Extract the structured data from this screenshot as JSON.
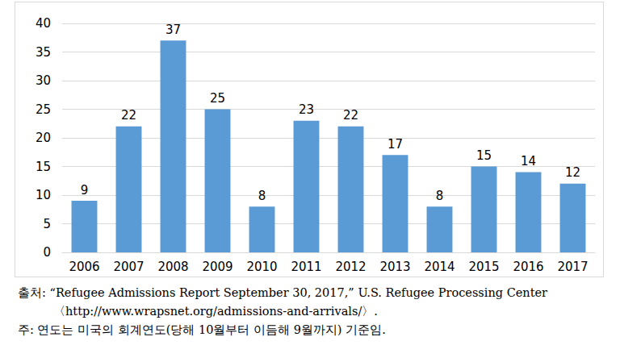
{
  "chart_data": {
    "type": "bar",
    "categories": [
      "2006",
      "2007",
      "2008",
      "2009",
      "2010",
      "2011",
      "2012",
      "2013",
      "2014",
      "2015",
      "2016",
      "2017"
    ],
    "values": [
      9,
      22,
      37,
      25,
      8,
      23,
      22,
      17,
      8,
      15,
      14,
      12
    ],
    "color": "#5b9bd5",
    "ylim": [
      0,
      40
    ],
    "yticks": [
      0,
      5,
      10,
      15,
      20,
      25,
      30,
      35,
      40
    ],
    "grid": true,
    "data_labels": true,
    "annotations": [
      "출처: “Refugee Admissions Report September 30, 2017,” U.S. Refugee Processing Center 〈http://www.wrapsnet.org/admissions-and-arrivals/〉.",
      "주: 연도는 미국의 회계연도(당해 10월부터 이듬해 9월까지) 기준임."
    ]
  }
}
